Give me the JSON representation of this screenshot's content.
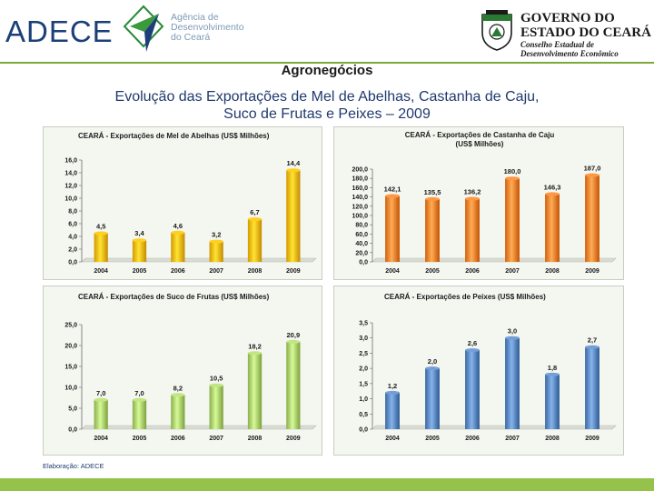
{
  "header": {
    "logo_text": "ADECE",
    "logo_sub_lines": [
      "Agência de",
      "Desenvolvimento",
      "do Ceará"
    ],
    "gov_line1": "GOVERNO DO",
    "gov_line2": "ESTADO DO CEARÁ",
    "gov_line3": "Conselho Estadual de",
    "gov_line4": "Desenvolvimento Econômico"
  },
  "section_title": "Agronegócios",
  "main_title": {
    "line1": "Evolução das Exportações de Mel de Abelhas, Castanha de Caju,",
    "line2": "Suco de Frutas e Peixes – 2009"
  },
  "footer_note": "Elaboração: ADECE",
  "colors": {
    "accent_green": "#95c24a",
    "title_blue": "#1f3a6e",
    "gold": "#f2b705",
    "orange": "#f07f2a",
    "light_green": "#a9cd6a",
    "steel_blue": "#5a86bf"
  },
  "chart_data": [
    {
      "id": "mel",
      "type": "bar",
      "title_lines": [
        "CEARÁ - Exportações de  Mel de Abelhas (US$ Milhões)"
      ],
      "categories": [
        "2004",
        "2005",
        "2006",
        "2007",
        "2008",
        "2009"
      ],
      "values": [
        4.5,
        3.4,
        4.6,
        3.2,
        6.7,
        14.4
      ],
      "value_labels": [
        "4,5",
        "3,4",
        "4,6",
        "3,2",
        "6,7",
        "14,4"
      ],
      "ylim": [
        0,
        16
      ],
      "yticks": [
        "0,0",
        "2,0",
        "4,0",
        "6,0",
        "8,0",
        "10,0",
        "12,0",
        "14,0",
        "16,0"
      ],
      "color": "#f2b705",
      "xlabel": "",
      "ylabel": ""
    },
    {
      "id": "castanha",
      "type": "bar",
      "title_lines": [
        "CEARÁ - Exportações de  Castanha de Caju",
        "(US$ Milhões)"
      ],
      "categories": [
        "2004",
        "2005",
        "2006",
        "2007",
        "2008",
        "2009"
      ],
      "values": [
        142.1,
        135.5,
        136.2,
        180.0,
        146.3,
        187.0
      ],
      "value_labels": [
        "142,1",
        "135,5",
        "136,2",
        "180,0",
        "146,3",
        "187,0"
      ],
      "ylim": [
        0,
        200
      ],
      "yticks": [
        "0,0",
        "20,0",
        "40,0",
        "60,0",
        "80,0",
        "100,0",
        "120,0",
        "140,0",
        "160,0",
        "180,0",
        "200,0"
      ],
      "color": "#f07f2a",
      "xlabel": "",
      "ylabel": ""
    },
    {
      "id": "suco",
      "type": "bar",
      "title_lines": [
        "CEARÁ - Exportações de  Suco de Frutas (US$ Milhões)"
      ],
      "categories": [
        "2004",
        "2005",
        "2006",
        "2007",
        "2008",
        "2009"
      ],
      "values": [
        7.0,
        7.0,
        8.2,
        10.5,
        18.2,
        20.9
      ],
      "value_labels": [
        "7,0",
        "7,0",
        "8,2",
        "10,5",
        "18,2",
        "20,9"
      ],
      "ylim": [
        0,
        25
      ],
      "yticks": [
        "0,0",
        "5,0",
        "10,0",
        "15,0",
        "20,0",
        "25,0"
      ],
      "color": "#a9cd6a",
      "xlabel": "",
      "ylabel": ""
    },
    {
      "id": "peixes",
      "type": "bar",
      "title_lines": [
        "CEARÁ - Exportações de  Peixes (US$ Milhões)"
      ],
      "categories": [
        "2004",
        "2005",
        "2006",
        "2007",
        "2008",
        "2009"
      ],
      "values": [
        1.2,
        2.0,
        2.6,
        3.0,
        1.8,
        2.7
      ],
      "value_labels": [
        "1,2",
        "2,0",
        "2,6",
        "3,0",
        "1,8",
        "2,7"
      ],
      "ylim": [
        0,
        3.5
      ],
      "yticks": [
        "0,0",
        "0,5",
        "1,0",
        "1,5",
        "2,0",
        "2,5",
        "3,0",
        "3,5"
      ],
      "color": "#5a86bf",
      "xlabel": "",
      "ylabel": ""
    }
  ]
}
